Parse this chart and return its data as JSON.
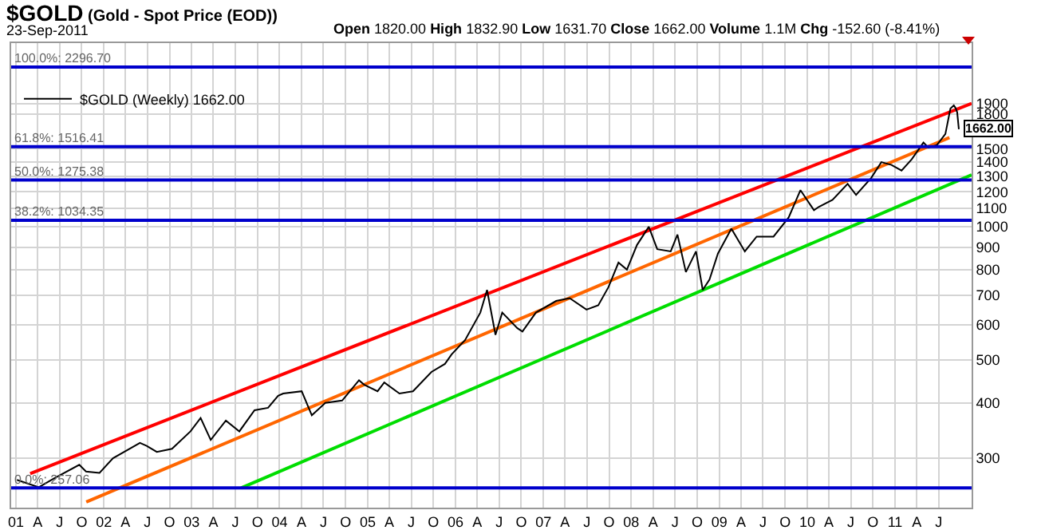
{
  "chart_data": {
    "type": "line",
    "title": "$GOLD (Gold - Spot Price (EOD))",
    "subtitle": "23-Sep-2011",
    "annotations": [
      "Open 1820.00 High 1832.90 Low 1631.70 Close 1662.00 Volume 1.1M Chg -152.60 (-8.41%)",
      {
        "text": "1662.00",
        "x": "2011-09-23",
        "y": 1662
      }
    ],
    "xlim": [
      "2000-12-12",
      "2011-11-15"
    ],
    "ylim": [
      232,
      2600
    ],
    "log": "y",
    "grid": true,
    "legend": "top left",
    "marker": "none",
    "line_style": "solid",
    "xticks": [
      {
        "value": "2001-01-01",
        "label": "01"
      },
      {
        "value": "2001-04-01",
        "label": "A"
      },
      {
        "value": "2001-07-01",
        "label": "J"
      },
      {
        "value": "2001-10-01",
        "label": "O"
      },
      {
        "value": "2002-01-01",
        "label": "02"
      },
      {
        "value": "2002-04-01",
        "label": "A"
      },
      {
        "value": "2002-07-01",
        "label": "J"
      },
      {
        "value": "2002-10-01",
        "label": "O"
      },
      {
        "value": "2003-01-01",
        "label": "03"
      },
      {
        "value": "2003-04-01",
        "label": "A"
      },
      {
        "value": "2003-07-01",
        "label": "J"
      },
      {
        "value": "2003-10-01",
        "label": "O"
      },
      {
        "value": "2004-01-01",
        "label": "04"
      },
      {
        "value": "2004-04-01",
        "label": "A"
      },
      {
        "value": "2004-07-01",
        "label": "J"
      },
      {
        "value": "2004-10-01",
        "label": "O"
      },
      {
        "value": "2005-01-01",
        "label": "05"
      },
      {
        "value": "2005-04-01",
        "label": "A"
      },
      {
        "value": "2005-07-01",
        "label": "J"
      },
      {
        "value": "2005-10-01",
        "label": "O"
      },
      {
        "value": "2006-01-01",
        "label": "06"
      },
      {
        "value": "2006-04-01",
        "label": "A"
      },
      {
        "value": "2006-07-01",
        "label": "J"
      },
      {
        "value": "2006-10-01",
        "label": "O"
      },
      {
        "value": "2007-01-01",
        "label": "07"
      },
      {
        "value": "2007-04-01",
        "label": "A"
      },
      {
        "value": "2007-07-01",
        "label": "J"
      },
      {
        "value": "2007-10-01",
        "label": "O"
      },
      {
        "value": "2008-01-01",
        "label": "08"
      },
      {
        "value": "2008-04-01",
        "label": "A"
      },
      {
        "value": "2008-07-01",
        "label": "J"
      },
      {
        "value": "2008-10-01",
        "label": "O"
      },
      {
        "value": "2009-01-01",
        "label": "09"
      },
      {
        "value": "2009-04-01",
        "label": "A"
      },
      {
        "value": "2009-07-01",
        "label": "J"
      },
      {
        "value": "2009-10-01",
        "label": "O"
      },
      {
        "value": "2010-01-01",
        "label": "10"
      },
      {
        "value": "2010-04-01",
        "label": "A"
      },
      {
        "value": "2010-07-01",
        "label": "J"
      },
      {
        "value": "2010-10-01",
        "label": "O"
      },
      {
        "value": "2011-01-01",
        "label": "11"
      },
      {
        "value": "2011-04-01",
        "label": "A"
      },
      {
        "value": "2011-07-01",
        "label": "J"
      }
    ],
    "yticks": [
      300,
      400,
      500,
      600,
      700,
      800,
      900,
      1000,
      1100,
      1200,
      1300,
      1400,
      1500,
      1800,
      1900
    ],
    "ref_lines": [
      {
        "axis": "y",
        "value": 2296.7,
        "label": "100.0%: 2296.70",
        "color": "#0000cc"
      },
      {
        "axis": "y",
        "value": 1516.41,
        "label": "61.8%: 1516.41",
        "color": "#0000cc"
      },
      {
        "axis": "y",
        "value": 1275.38,
        "label": "50.0%: 1275.38",
        "color": "#0000cc"
      },
      {
        "axis": "y",
        "value": 1034.35,
        "label": "38.2%: 1034.35",
        "color": "#0000cc"
      },
      {
        "axis": "y",
        "value": 257.06,
        "label": "0.0%: 257.06",
        "color": "#0000cc"
      }
    ],
    "series": [
      {
        "name": "$GOLD (Weekly) 1662.00",
        "color": "#000000",
        "x": [
          "2001-01-05",
          "2001-04-06",
          "2001-06-08",
          "2001-09-21",
          "2001-10-19",
          "2001-12-14",
          "2002-02-08",
          "2002-05-31",
          "2002-06-28",
          "2002-08-09",
          "2002-10-11",
          "2002-12-27",
          "2003-02-07",
          "2003-03-21",
          "2003-05-23",
          "2003-07-18",
          "2003-09-19",
          "2003-11-14",
          "2003-12-26",
          "2004-01-16",
          "2004-04-02",
          "2004-05-14",
          "2004-07-09",
          "2004-09-17",
          "2004-11-26",
          "2004-12-17",
          "2005-02-11",
          "2005-03-11",
          "2005-05-13",
          "2005-07-08",
          "2005-09-23",
          "2005-11-18",
          "2005-12-16",
          "2006-02-10",
          "2006-04-14",
          "2006-05-12",
          "2006-06-16",
          "2006-07-14",
          "2006-09-15",
          "2006-10-06",
          "2006-12-01",
          "2007-02-23",
          "2007-04-20",
          "2007-06-29",
          "2007-08-17",
          "2007-09-28",
          "2007-11-09",
          "2007-12-14",
          "2008-01-25",
          "2008-03-14",
          "2008-04-18",
          "2008-06-13",
          "2008-07-11",
          "2008-08-15",
          "2008-09-26",
          "2008-10-24",
          "2008-11-21",
          "2008-12-26",
          "2009-02-20",
          "2009-04-17",
          "2009-06-05",
          "2009-08-14",
          "2009-10-16",
          "2009-12-04",
          "2010-01-29",
          "2010-02-19",
          "2010-04-16",
          "2010-06-18",
          "2010-07-23",
          "2010-09-24",
          "2010-11-05",
          "2010-12-17",
          "2011-01-28",
          "2011-03-11",
          "2011-04-29",
          "2011-05-20",
          "2011-06-24",
          "2011-07-29",
          "2011-08-19",
          "2011-09-02",
          "2011-09-09",
          "2011-09-16",
          "2011-09-23"
        ],
        "values": [
          268,
          258,
          270,
          290,
          280,
          278,
          300,
          325,
          320,
          310,
          315,
          345,
          370,
          330,
          365,
          345,
          385,
          390,
          415,
          420,
          425,
          375,
          400,
          405,
          450,
          440,
          425,
          445,
          420,
          425,
          470,
          490,
          515,
          555,
          640,
          720,
          570,
          640,
          590,
          580,
          640,
          680,
          690,
          650,
          665,
          730,
          830,
          800,
          910,
          1000,
          890,
          880,
          960,
          790,
          880,
          720,
          760,
          870,
          990,
          880,
          950,
          950,
          1050,
          1210,
          1090,
          1110,
          1150,
          1250,
          1180,
          1290,
          1400,
          1380,
          1340,
          1420,
          1550,
          1510,
          1530,
          1620,
          1850,
          1880,
          1857,
          1815,
          1662
        ]
      },
      {
        "type": "line",
        "color": "#ff0000",
        "x": [
          "2001-03-01",
          "2011-11-15"
        ],
        "values": [
          277,
          1900
        ]
      },
      {
        "type": "line",
        "color": "#ff6600",
        "x": [
          "2001-10-20",
          "2011-08-15"
        ],
        "values": [
          239,
          1590
        ]
      },
      {
        "type": "line",
        "color": "#00dd00",
        "x": [
          "2003-07-25",
          "2011-11-15"
        ],
        "values": [
          257,
          1310
        ]
      }
    ]
  }
}
